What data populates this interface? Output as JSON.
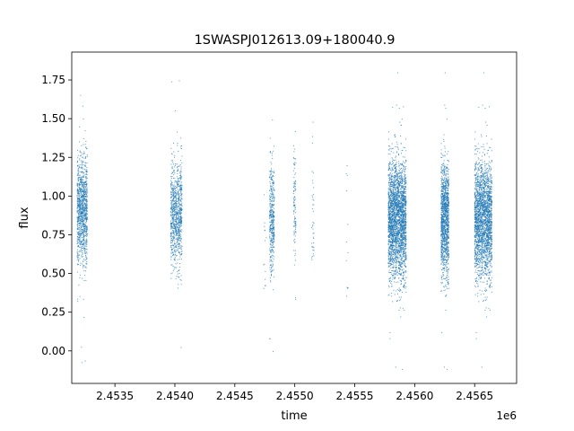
{
  "chart_data": {
    "type": "scatter",
    "title": "1SWASPJ012613.09+180040.9",
    "xlabel": "time",
    "ylabel": "flux",
    "x_offset_label": "1e6",
    "xlim": [
      2453140,
      2456850
    ],
    "ylim": [
      -0.21,
      1.93
    ],
    "x_ticks": [
      2453500,
      2454000,
      2454500,
      2455000,
      2455500,
      2456000,
      2456500
    ],
    "x_tick_labels": [
      "2.4535",
      "2.4540",
      "2.4545",
      "2.4550",
      "2.4555",
      "2.4560",
      "2.4565"
    ],
    "y_ticks": [
      0.0,
      0.25,
      0.5,
      0.75,
      1.0,
      1.25,
      1.5,
      1.75
    ],
    "y_tick_labels": [
      "0.00",
      "0.25",
      "0.50",
      "0.75",
      "1.00",
      "1.25",
      "1.50",
      "1.75"
    ],
    "grid": false,
    "marker_color": "#1f77b4",
    "series": [
      {
        "clusters": [
          {
            "x_start": 2453185,
            "x_end": 2453270,
            "center": 0.9,
            "spread": 0.17,
            "count": 1100
          },
          {
            "x_start": 2453965,
            "x_end": 2454060,
            "center": 0.88,
            "spread": 0.17,
            "count": 900
          },
          {
            "x_start": 2454740,
            "x_end": 2454765,
            "center": 0.75,
            "spread": 0.25,
            "count": 14
          },
          {
            "x_start": 2454790,
            "x_end": 2454830,
            "center": 0.85,
            "spread": 0.18,
            "count": 420
          },
          {
            "x_start": 2454990,
            "x_end": 2455010,
            "center": 0.95,
            "spread": 0.2,
            "count": 110
          },
          {
            "x_start": 2455140,
            "x_end": 2455160,
            "center": 0.85,
            "spread": 0.2,
            "count": 40
          },
          {
            "x_start": 2455430,
            "x_end": 2455445,
            "center": 0.7,
            "spread": 0.3,
            "count": 12
          },
          {
            "x_start": 2455780,
            "x_end": 2455930,
            "center": 0.85,
            "spread": 0.19,
            "count": 2900
          },
          {
            "x_start": 2456220,
            "x_end": 2456285,
            "center": 0.85,
            "spread": 0.18,
            "count": 1300
          },
          {
            "x_start": 2456500,
            "x_end": 2456645,
            "center": 0.85,
            "spread": 0.19,
            "count": 2400
          }
        ]
      }
    ]
  }
}
